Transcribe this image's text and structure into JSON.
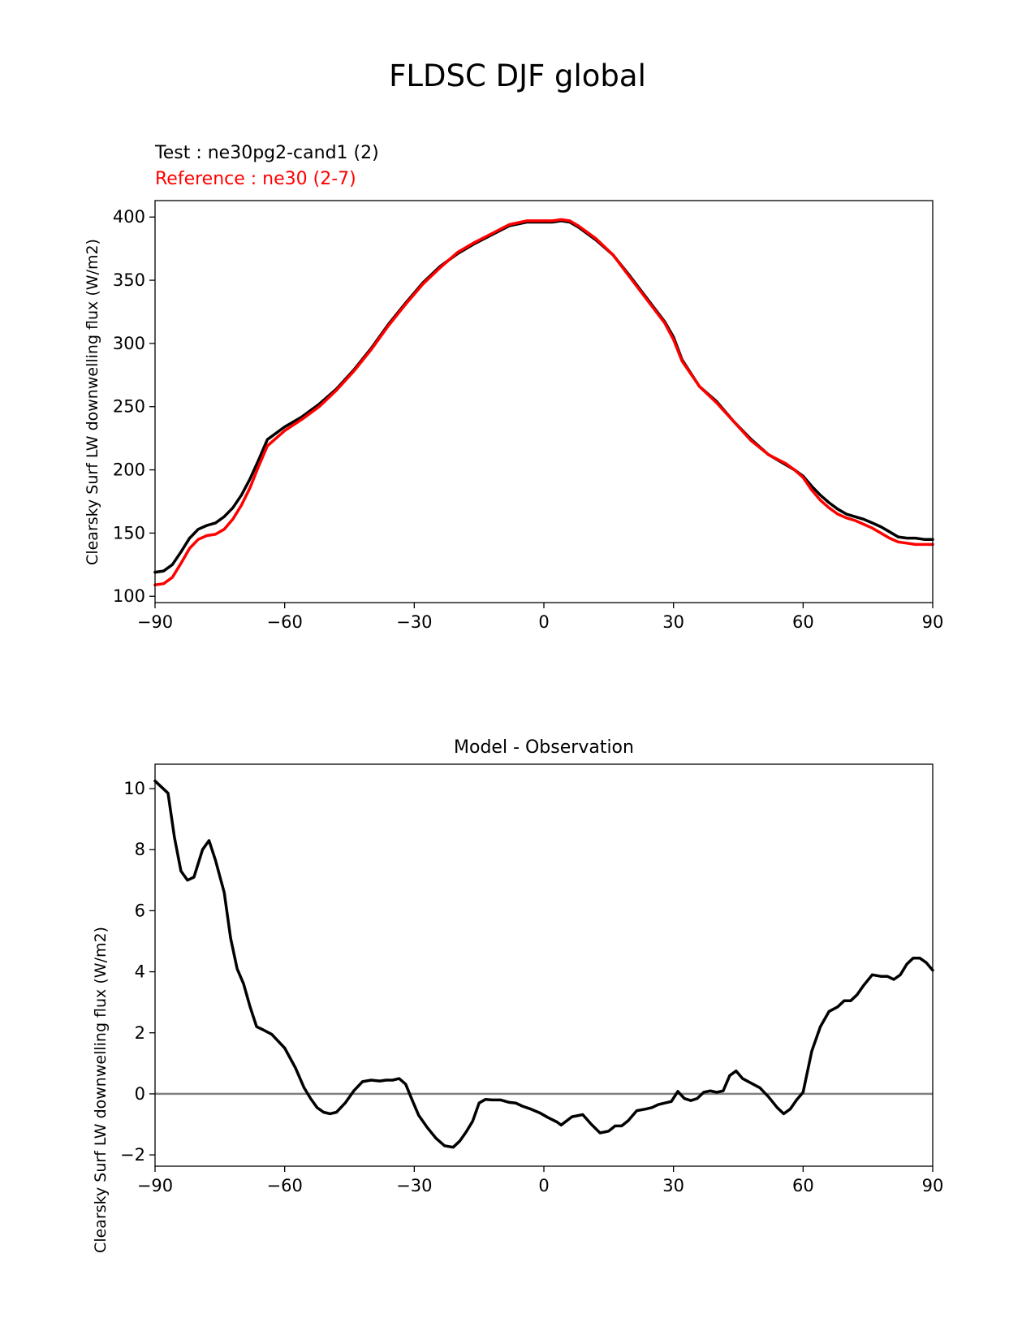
{
  "title": "FLDSC DJF global",
  "legend": {
    "test_label": "Test : ne30pg2-cand1 (2)",
    "reference_label": "Reference : ne30 (2-7)"
  },
  "colors": {
    "test": "#000000",
    "reference": "#ff0000",
    "zero_line": "#808080"
  },
  "chart_data": [
    {
      "type": "line",
      "title": "",
      "xlabel": "",
      "ylabel": "Clearsky Surf LW downwelling flux (W/m2)",
      "xlim": [
        -90,
        90
      ],
      "ylim": [
        95,
        413
      ],
      "xticks": [
        -90,
        -60,
        -30,
        0,
        30,
        60,
        90
      ],
      "xtick_labels": [
        "−90",
        "−60",
        "−30",
        "0",
        "30",
        "60",
        "90"
      ],
      "yticks": [
        100,
        150,
        200,
        250,
        300,
        350,
        400
      ],
      "ytick_labels": [
        "100",
        "150",
        "200",
        "250",
        "300",
        "350",
        "400"
      ],
      "x": [
        -90,
        -88,
        -86,
        -84,
        -82,
        -80,
        -78,
        -76,
        -74,
        -72,
        -70,
        -68,
        -66,
        -64,
        -60,
        -56,
        -52,
        -48,
        -44,
        -40,
        -36,
        -32,
        -28,
        -24,
        -20,
        -16,
        -12,
        -8,
        -4,
        0,
        2,
        4,
        6,
        8,
        12,
        16,
        20,
        24,
        26,
        28,
        30,
        32,
        36,
        40,
        44,
        48,
        52,
        56,
        58,
        60,
        62,
        64,
        66,
        68,
        70,
        72,
        74,
        76,
        78,
        80,
        82,
        84,
        86,
        88,
        90
      ],
      "series": [
        {
          "name": "Test : ne30pg2-cand1 (2)",
          "color": "#000000",
          "values": [
            119,
            120,
            125,
            135,
            146,
            153,
            156,
            158,
            163,
            170,
            180,
            193,
            208,
            224,
            234,
            242,
            252,
            264,
            279,
            296,
            315,
            332,
            348,
            361,
            371,
            379,
            386,
            393,
            396,
            396,
            396,
            397,
            396,
            392,
            382,
            370,
            353,
            335,
            326,
            317,
            305,
            287,
            266,
            254,
            238,
            224,
            212,
            204,
            200,
            195,
            187,
            180,
            174,
            169,
            165,
            163,
            161,
            158,
            155,
            151,
            147,
            146,
            146,
            145,
            145
          ]
        },
        {
          "name": "Reference : ne30 (2-7)",
          "color": "#ff0000",
          "values": [
            109,
            110,
            115,
            126,
            138,
            145,
            148,
            149,
            153,
            161,
            172,
            186,
            203,
            219,
            231,
            240,
            250,
            263,
            278,
            295,
            314,
            331,
            347,
            360,
            372,
            380,
            387,
            394,
            397,
            397,
            397,
            398,
            397,
            393,
            383,
            370,
            352,
            334,
            325,
            316,
            303,
            286,
            266,
            253,
            238,
            223,
            212,
            205,
            200,
            194,
            184,
            176,
            170,
            165,
            162,
            160,
            157,
            154,
            150,
            146,
            143,
            142,
            141,
            141,
            141
          ]
        }
      ]
    },
    {
      "type": "line",
      "title": "Model - Observation",
      "xlabel": "",
      "ylabel": "Clearsky Surf LW downwelling flux (W/m2)",
      "xlim": [
        -90,
        90
      ],
      "ylim": [
        -2.37,
        10.8
      ],
      "xticks": [
        -90,
        -60,
        -30,
        0,
        30,
        60,
        90
      ],
      "xtick_labels": [
        "−90",
        "−60",
        "−30",
        "0",
        "30",
        "60",
        "90"
      ],
      "yticks": [
        -2,
        0,
        2,
        4,
        6,
        8,
        10
      ],
      "ytick_labels": [
        "−2",
        "0",
        "2",
        "4",
        "6",
        "8",
        "10"
      ],
      "zero_line": 0,
      "x": [
        -90,
        -87,
        -85.5,
        -84,
        -82.5,
        -81,
        -79,
        -77.5,
        -76,
        -74,
        -72.5,
        -71,
        -69.5,
        -68,
        -66.5,
        -65,
        -63,
        -60,
        -57.5,
        -55.5,
        -54,
        -52.5,
        -51,
        -49.5,
        -48,
        -46,
        -44,
        -42,
        -40,
        -38,
        -36.5,
        -35,
        -33.5,
        -32,
        -30.5,
        -29,
        -27,
        -25,
        -23,
        -21,
        -19.5,
        -18,
        -16.5,
        -15,
        -13.5,
        -12,
        -10,
        -8,
        -6.5,
        -5,
        -3,
        -1,
        1,
        3,
        4,
        6.5,
        9,
        11,
        13,
        15,
        16.5,
        18,
        19.5,
        21.5,
        23.5,
        25,
        26.5,
        28,
        29.5,
        31,
        32.5,
        34,
        35.5,
        37,
        38.5,
        40,
        41.5,
        43,
        44.5,
        46,
        48,
        50,
        52,
        54,
        55.5,
        57,
        58.5,
        60,
        62,
        64,
        66,
        68,
        69.5,
        71,
        72.5,
        74,
        76,
        78,
        79.5,
        81,
        82.5,
        84,
        85.5,
        87,
        88.5,
        90
      ],
      "series": [
        {
          "name": "Model - Observation",
          "color": "#000000",
          "values": [
            10.25,
            9.85,
            8.4,
            7.3,
            7.0,
            7.1,
            8.0,
            8.3,
            7.65,
            6.6,
            5.1,
            4.1,
            3.6,
            2.85,
            2.2,
            2.1,
            1.95,
            1.5,
            0.85,
            0.2,
            -0.15,
            -0.45,
            -0.6,
            -0.65,
            -0.6,
            -0.3,
            0.1,
            0.4,
            0.45,
            0.42,
            0.45,
            0.45,
            0.5,
            0.32,
            -0.2,
            -0.7,
            -1.1,
            -1.45,
            -1.7,
            -1.75,
            -1.55,
            -1.25,
            -0.9,
            -0.3,
            -0.18,
            -0.2,
            -0.2,
            -0.28,
            -0.3,
            -0.4,
            -0.5,
            -0.62,
            -0.78,
            -0.92,
            -1.02,
            -0.75,
            -0.68,
            -1.0,
            -1.28,
            -1.22,
            -1.05,
            -1.05,
            -0.88,
            -0.55,
            -0.5,
            -0.45,
            -0.35,
            -0.3,
            -0.25,
            0.08,
            -0.15,
            -0.22,
            -0.15,
            0.05,
            0.1,
            0.05,
            0.1,
            0.6,
            0.75,
            0.5,
            0.35,
            0.2,
            -0.1,
            -0.45,
            -0.65,
            -0.5,
            -0.2,
            0.05,
            1.4,
            2.2,
            2.7,
            2.85,
            3.05,
            3.05,
            3.25,
            3.55,
            3.9,
            3.85,
            3.85,
            3.75,
            3.9,
            4.25,
            4.45,
            4.45,
            4.3,
            4.05
          ]
        }
      ]
    }
  ]
}
